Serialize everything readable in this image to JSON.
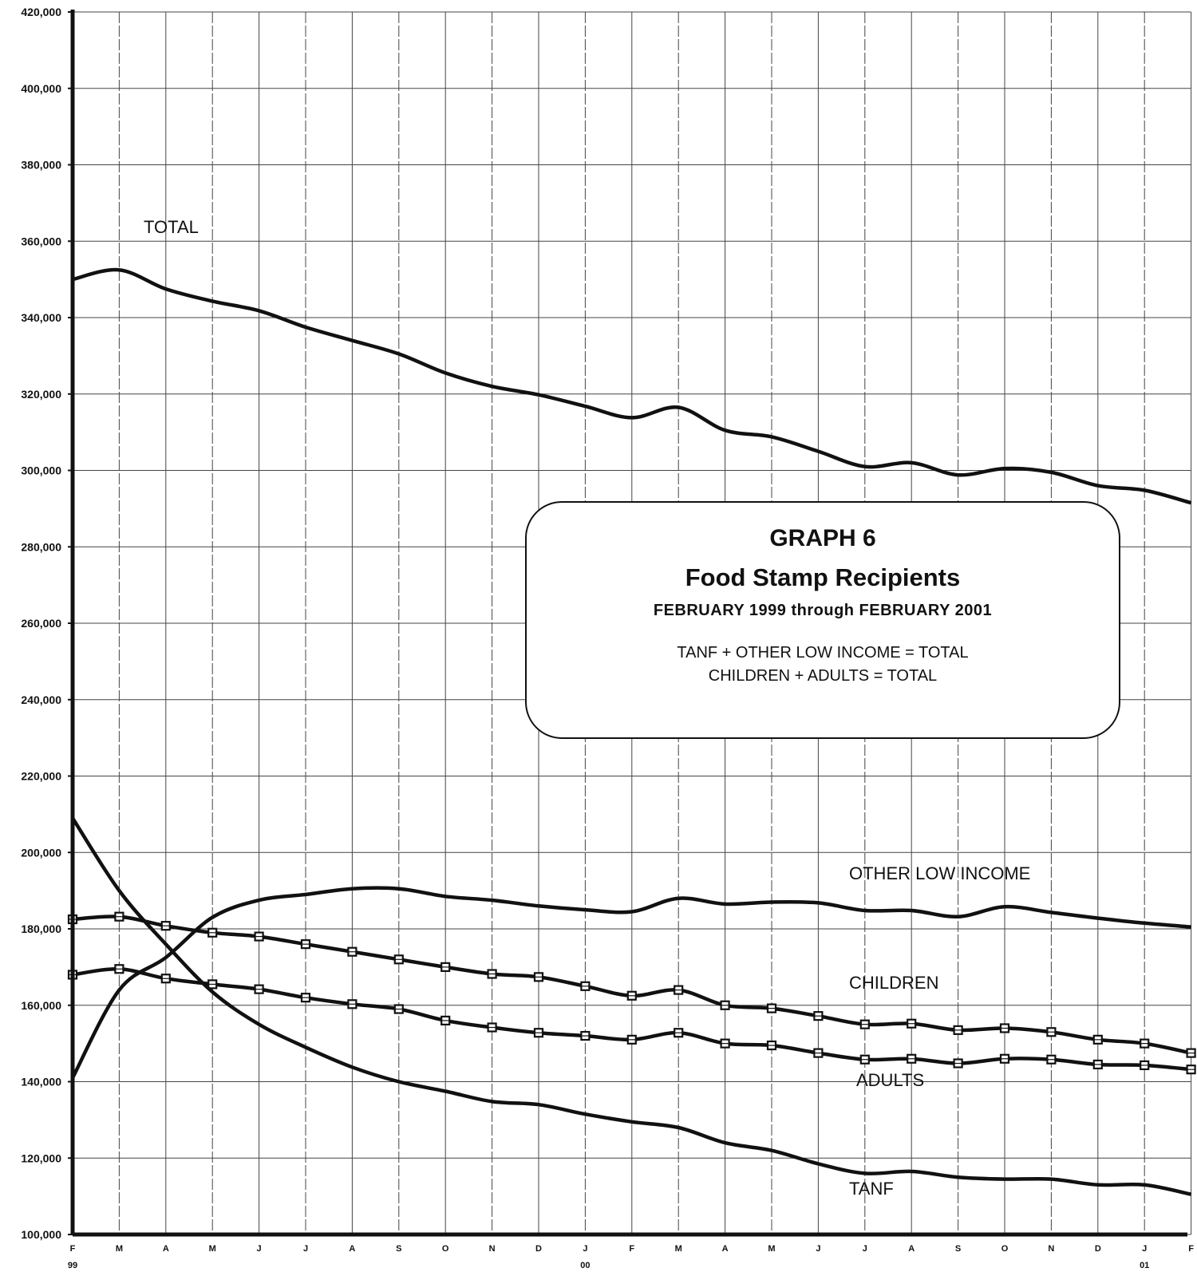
{
  "chart_data": {
    "type": "line",
    "title": "GRAPH 6",
    "subtitle": "Food Stamp Recipients",
    "period": "FEBRUARY 1999  through FEBRUARY 2001",
    "notes": [
      "TANF + OTHER LOW INCOME = TOTAL",
      "CHILDREN  + ADULTS = TOTAL"
    ],
    "xlabel": "",
    "ylabel": "",
    "categories": [
      "F",
      "M",
      "A",
      "M",
      "J",
      "J",
      "A",
      "S",
      "O",
      "N",
      "D",
      "J",
      "F",
      "M",
      "A",
      "M",
      "J",
      "J",
      "A",
      "S",
      "O",
      "N",
      "D",
      "J",
      "F"
    ],
    "year_labels": [
      {
        "index": 0,
        "label": "99"
      },
      {
        "index": 11,
        "label": "00"
      },
      {
        "index": 23,
        "label": "01"
      }
    ],
    "ylim": [
      100000,
      420000
    ],
    "yticks": [
      100000,
      120000,
      140000,
      160000,
      180000,
      200000,
      220000,
      240000,
      260000,
      280000,
      300000,
      320000,
      340000,
      360000,
      380000,
      400000,
      420000
    ],
    "ytick_labels": [
      "100,000",
      "120,000",
      "140,000",
      "160,000",
      "180,000",
      "200,000",
      "220,000",
      "240,000",
      "260,000",
      "280,000",
      "300,000",
      "320,000",
      "340,000",
      "360,000",
      "380,000",
      "400,000",
      "420,000"
    ],
    "grid": true,
    "series": [
      {
        "name": "TOTAL",
        "markers": false,
        "values": [
          350000,
          352500,
          347500,
          344300,
          341800,
          337500,
          334000,
          330500,
          325500,
          322000,
          319800,
          316800,
          313800,
          316500,
          310500,
          308800,
          305000,
          301000,
          302000,
          298800,
          300500,
          299500,
          296000,
          294800,
          291500
        ]
      },
      {
        "name": "OTHER LOW INCOME",
        "markers": false,
        "values": [
          141000,
          164000,
          172500,
          183000,
          187500,
          189000,
          190500,
          190500,
          188500,
          187500,
          186000,
          185000,
          184500,
          188000,
          186500,
          187000,
          186800,
          184800,
          184800,
          183200,
          185800,
          184300,
          182800,
          181500,
          180500
        ]
      },
      {
        "name": "CHILDREN",
        "markers": true,
        "values": [
          182500,
          183200,
          180800,
          179000,
          178000,
          176000,
          174000,
          172000,
          170000,
          168200,
          167400,
          165000,
          162500,
          164000,
          160000,
          159200,
          157200,
          155000,
          155200,
          153500,
          154000,
          153000,
          151000,
          150000,
          147500
        ]
      },
      {
        "name": "ADULTS",
        "markers": true,
        "values": [
          168000,
          169500,
          167000,
          165500,
          164200,
          162000,
          160300,
          159000,
          156000,
          154200,
          152800,
          152000,
          151000,
          152800,
          150000,
          149500,
          147500,
          145800,
          146000,
          144800,
          146000,
          145800,
          144500,
          144300,
          143200
        ]
      },
      {
        "name": "TANF",
        "markers": false,
        "values": [
          209000,
          190000,
          176000,
          163500,
          155000,
          149000,
          143800,
          140000,
          137500,
          134800,
          134000,
          131500,
          129500,
          128000,
          124000,
          122000,
          118500,
          116000,
          116500,
          115000,
          114500,
          114500,
          113000,
          113000,
          110500
        ]
      }
    ]
  }
}
